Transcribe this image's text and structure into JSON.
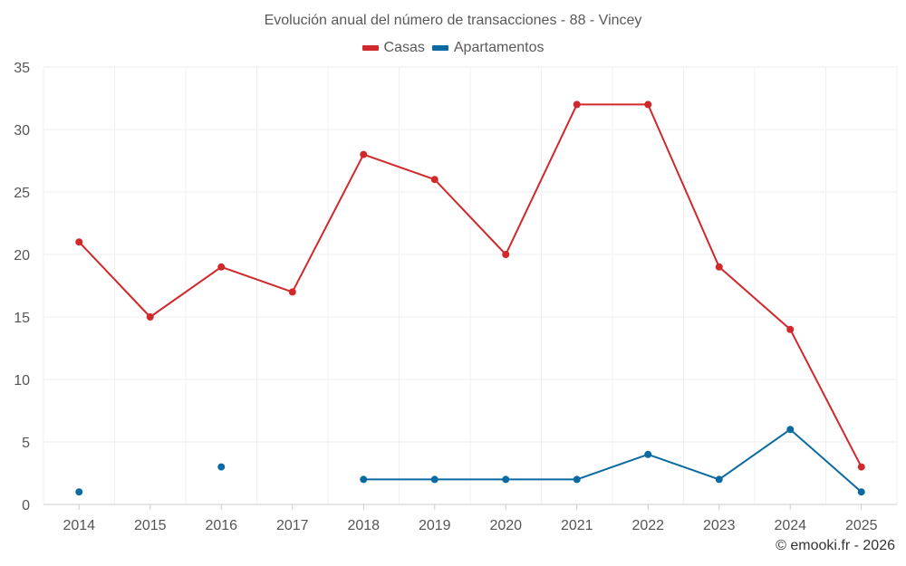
{
  "chart_data": {
    "type": "line",
    "title": "Evolución anual del número de transacciones - 88 - Vincey",
    "categories": [
      "2014",
      "2015",
      "2016",
      "2017",
      "2018",
      "2019",
      "2020",
      "2021",
      "2022",
      "2023",
      "2024",
      "2025"
    ],
    "series": [
      {
        "name": "Casas",
        "color": "#d0282b",
        "values": [
          21,
          15,
          19,
          17,
          28,
          26,
          20,
          32,
          32,
          19,
          14,
          3
        ]
      },
      {
        "name": "Apartamentos",
        "color": "#0a6aa1",
        "values": [
          1,
          null,
          3,
          null,
          2,
          2,
          2,
          2,
          4,
          2,
          6,
          1
        ]
      }
    ],
    "ylim": [
      0,
      35
    ],
    "yticks": [
      0,
      5,
      10,
      15,
      20,
      25,
      30,
      35
    ],
    "xlabel": "",
    "ylabel": "",
    "grid": true,
    "legend_position": "top-center"
  },
  "credit": "© emooki.fr - 2026"
}
